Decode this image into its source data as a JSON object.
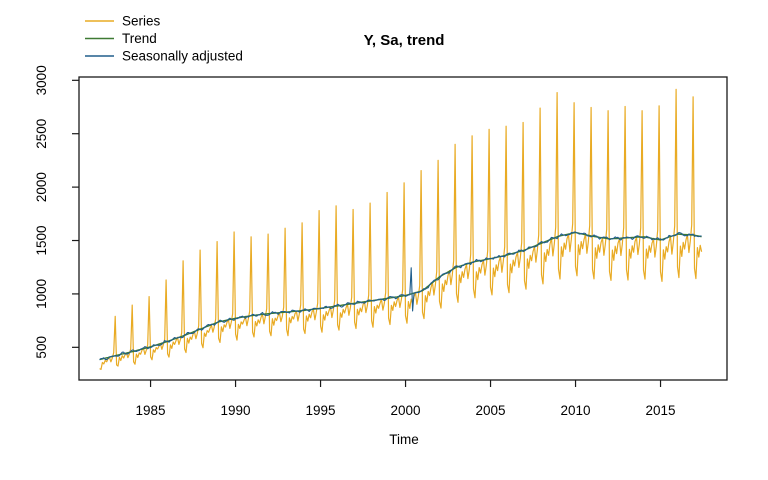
{
  "figure": {
    "title": "Y, Sa, trend"
  },
  "axes": {
    "xlabel": "Time",
    "x_ticks": [
      1985,
      1990,
      1995,
      2000,
      2005,
      2010,
      2015
    ],
    "y_ticks": [
      500,
      1000,
      1500,
      2000,
      2500,
      3000
    ]
  },
  "legend": {
    "items": [
      {
        "label": "Series",
        "color": "#E9AB24"
      },
      {
        "label": "Trend",
        "color": "#3E7A33"
      },
      {
        "label": "Seasonally adjusted",
        "color": "#215E8C"
      }
    ]
  },
  "chart_data": {
    "type": "line",
    "title": "Y, Sa, trend",
    "xlabel": "Time",
    "ylabel": "",
    "grid": false,
    "legend_position": "top-left",
    "frequency": "monthly",
    "time_start": 1982.0,
    "time_end": 2017.45,
    "x_ticks": [
      1985,
      1990,
      1995,
      2000,
      2005,
      2010,
      2015
    ],
    "y_ticks": [
      500,
      1000,
      1500,
      2000,
      2500,
      3000
    ],
    "xlim": [
      1980.79,
      2018.91
    ],
    "ylim": [
      194,
      3031
    ],
    "colors": {
      "series": "#E9AB24",
      "trend": "#3E7A33",
      "seasonally_adjusted": "#215E8C",
      "axis": "#1a1a1a"
    },
    "trend_line": {
      "name": "Trend",
      "anchors": [
        [
          1982.0,
          385
        ],
        [
          1983,
          425
        ],
        [
          1984,
          462
        ],
        [
          1985,
          505
        ],
        [
          1986,
          555
        ],
        [
          1987,
          612
        ],
        [
          1988,
          675
        ],
        [
          1989,
          738
        ],
        [
          1990,
          772
        ],
        [
          1991,
          798
        ],
        [
          1992,
          816
        ],
        [
          1993,
          830
        ],
        [
          1994,
          845
        ],
        [
          1995,
          865
        ],
        [
          1996,
          888
        ],
        [
          1997,
          912
        ],
        [
          1998,
          936
        ],
        [
          1999,
          960
        ],
        [
          2000,
          985
        ],
        [
          2001,
          1030
        ],
        [
          2002,
          1160
        ],
        [
          2003,
          1250
        ],
        [
          2004,
          1300
        ],
        [
          2005,
          1330
        ],
        [
          2006,
          1365
        ],
        [
          2007,
          1410
        ],
        [
          2008,
          1475
        ],
        [
          2009,
          1540
        ],
        [
          2010,
          1575
        ],
        [
          2011,
          1540
        ],
        [
          2012,
          1515
        ],
        [
          2013,
          1525
        ],
        [
          2014,
          1535
        ],
        [
          2015,
          1505
        ],
        [
          2016,
          1560
        ],
        [
          2017,
          1550
        ],
        [
          2017.45,
          1535
        ]
      ]
    },
    "series_line": {
      "name": "Series",
      "seasonal_factors": [
        0.8,
        0.74,
        0.93,
        0.87,
        0.95,
        0.91,
        0.97,
        1.0,
        0.89,
        0.96,
        1.06
      ],
      "noise_amp": 7,
      "december_peaks": {
        "1982": 790,
        "1983": 895,
        "1984": 975,
        "1985": 1130,
        "1986": 1310,
        "1987": 1410,
        "1988": 1490,
        "1989": 1580,
        "1990": 1535,
        "1991": 1560,
        "1992": 1615,
        "1993": 1665,
        "1994": 1780,
        "1995": 1825,
        "1996": 1790,
        "1997": 1850,
        "1998": 1950,
        "1999": 2040,
        "2000": 2155,
        "2001": 2250,
        "2002": 2400,
        "2003": 2480,
        "2004": 2540,
        "2005": 2570,
        "2006": 2605,
        "2007": 2740,
        "2008": 2885,
        "2009": 2790,
        "2010": 2745,
        "2011": 2715,
        "2012": 2755,
        "2013": 2715,
        "2014": 2760,
        "2015": 2915,
        "2016": 2845
      }
    },
    "sa_line": {
      "name": "Seasonally adjusted",
      "noise_amp": 18,
      "outliers": [
        [
          2000.333,
          1245
        ],
        [
          2000.417,
          840
        ]
      ]
    }
  }
}
